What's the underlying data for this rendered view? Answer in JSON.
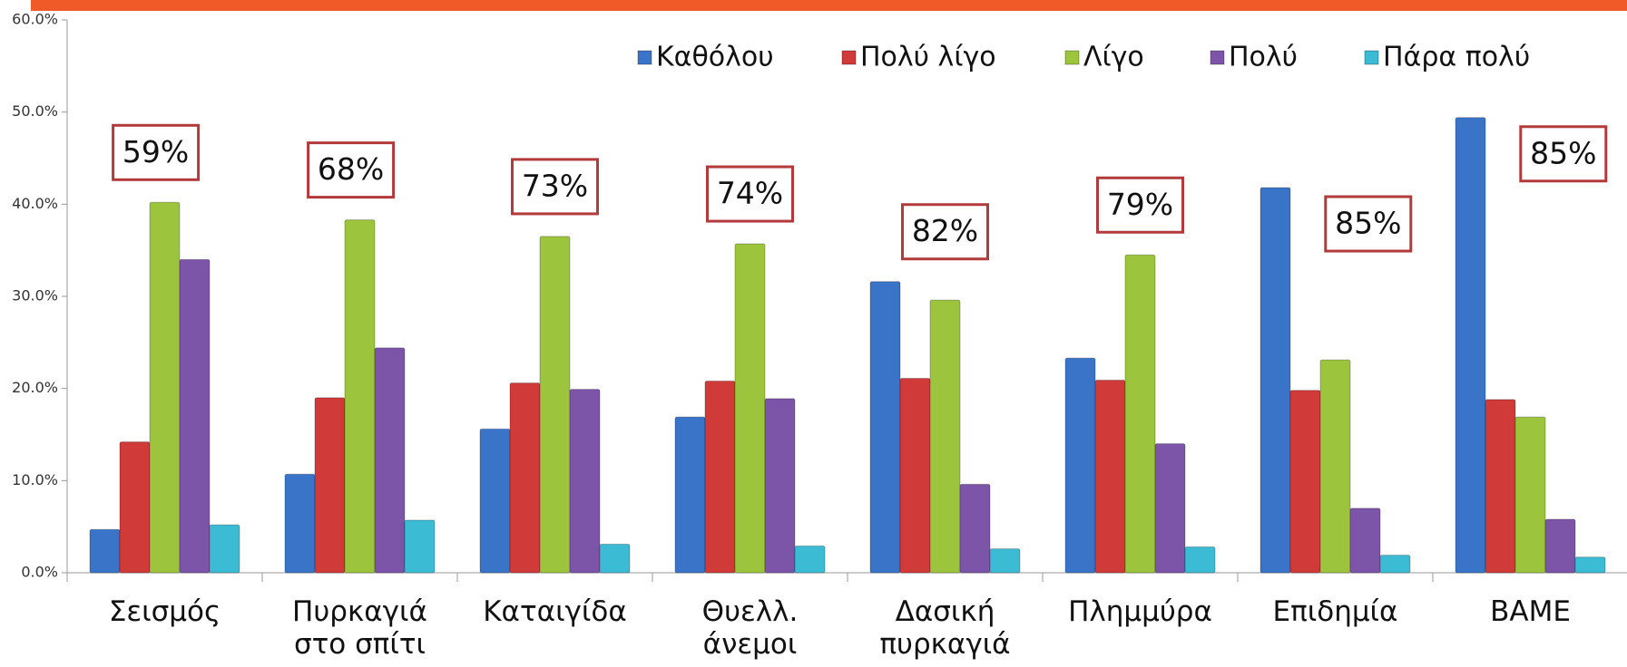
{
  "chart_data": {
    "type": "bar",
    "categories": [
      "Σεισμός",
      "Πυρκαγιά στο σπίτι",
      "Καταιγίδα",
      "Θυελλ. άνεμοι",
      "Δασική πυρκαγιά",
      "Πλημμύρα",
      "Επιδημία",
      "ΒΑΜΕ"
    ],
    "series": [
      {
        "name": "Καθόλου",
        "color": "#3a74c8",
        "values": [
          4.7,
          10.7,
          15.6,
          16.9,
          31.6,
          23.3,
          41.8,
          49.4
        ]
      },
      {
        "name": "Πολύ λίγο",
        "color": "#d03a38",
        "values": [
          14.2,
          19.0,
          20.6,
          20.8,
          21.1,
          20.9,
          19.8,
          18.8
        ]
      },
      {
        "name": "Λίγο",
        "color": "#9cc43c",
        "values": [
          40.2,
          38.3,
          36.5,
          35.7,
          29.6,
          34.5,
          23.1,
          16.9
        ]
      },
      {
        "name": "Πολύ",
        "color": "#7d55a8",
        "values": [
          34.0,
          24.4,
          19.9,
          18.9,
          9.6,
          14.0,
          7.0,
          5.8
        ]
      },
      {
        "name": "Πάρα πολύ",
        "color": "#3cbcd4",
        "values": [
          5.2,
          5.7,
          3.1,
          2.9,
          2.6,
          2.8,
          1.9,
          1.7
        ]
      }
    ],
    "annotations": [
      "59%",
      "68%",
      "73%",
      "74%",
      "82%",
      "79%",
      "85%",
      "85%"
    ],
    "ylim": [
      0,
      60
    ],
    "yticks": [
      {
        "value": 0,
        "label": "0.0%"
      },
      {
        "value": 10,
        "label": "10.0%"
      },
      {
        "value": 20,
        "label": "20.0%"
      },
      {
        "value": 30,
        "label": "30.0%"
      },
      {
        "value": 40,
        "label": "40.0%"
      },
      {
        "value": 50,
        "label": "50.0%"
      },
      {
        "value": 60,
        "label": "60.0%"
      }
    ],
    "legend": "top-right"
  }
}
